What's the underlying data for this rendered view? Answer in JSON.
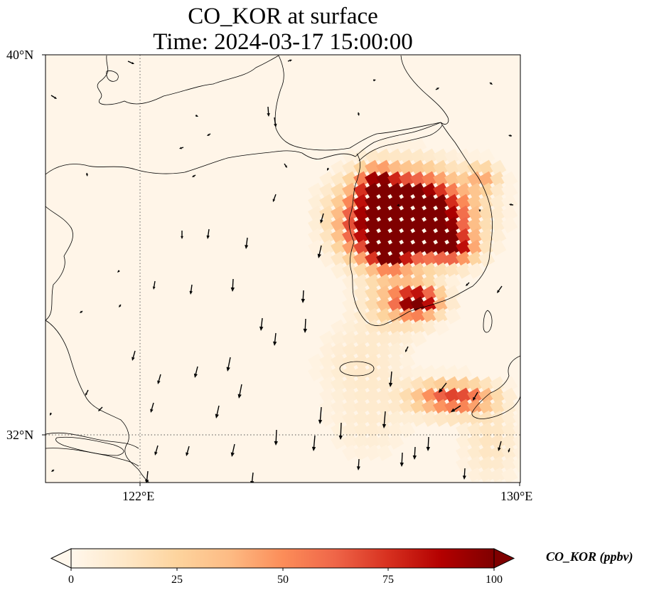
{
  "title": {
    "line1": "CO_KOR at surface",
    "line2": "Time: 2024-03-17 15:00:00"
  },
  "axes": {
    "lon_labels": [
      "122°E",
      "130°E"
    ],
    "lat_labels": [
      "40°N",
      "32°N"
    ],
    "lon_range": [
      120,
      130
    ],
    "lat_range": [
      31,
      40
    ],
    "gridlines": {
      "lon": [
        122
      ],
      "lat": [
        32
      ],
      "style": "dotted"
    }
  },
  "colorbar": {
    "label": "CO_KOR (ppbv)",
    "ticks": [
      "0",
      "25",
      "50",
      "75",
      "100"
    ],
    "range": [
      0,
      100
    ],
    "extend": "both",
    "colormap": "OrRd",
    "colors": [
      "#fff7ec",
      "#fee8c8",
      "#fdd49e",
      "#fdbb84",
      "#fc8d59",
      "#ef6548",
      "#d7301f",
      "#b30000",
      "#7f0000"
    ]
  },
  "map": {
    "background_color": "#fff5e8",
    "coastline_color": "#000000",
    "vector_color": "#000000"
  }
}
